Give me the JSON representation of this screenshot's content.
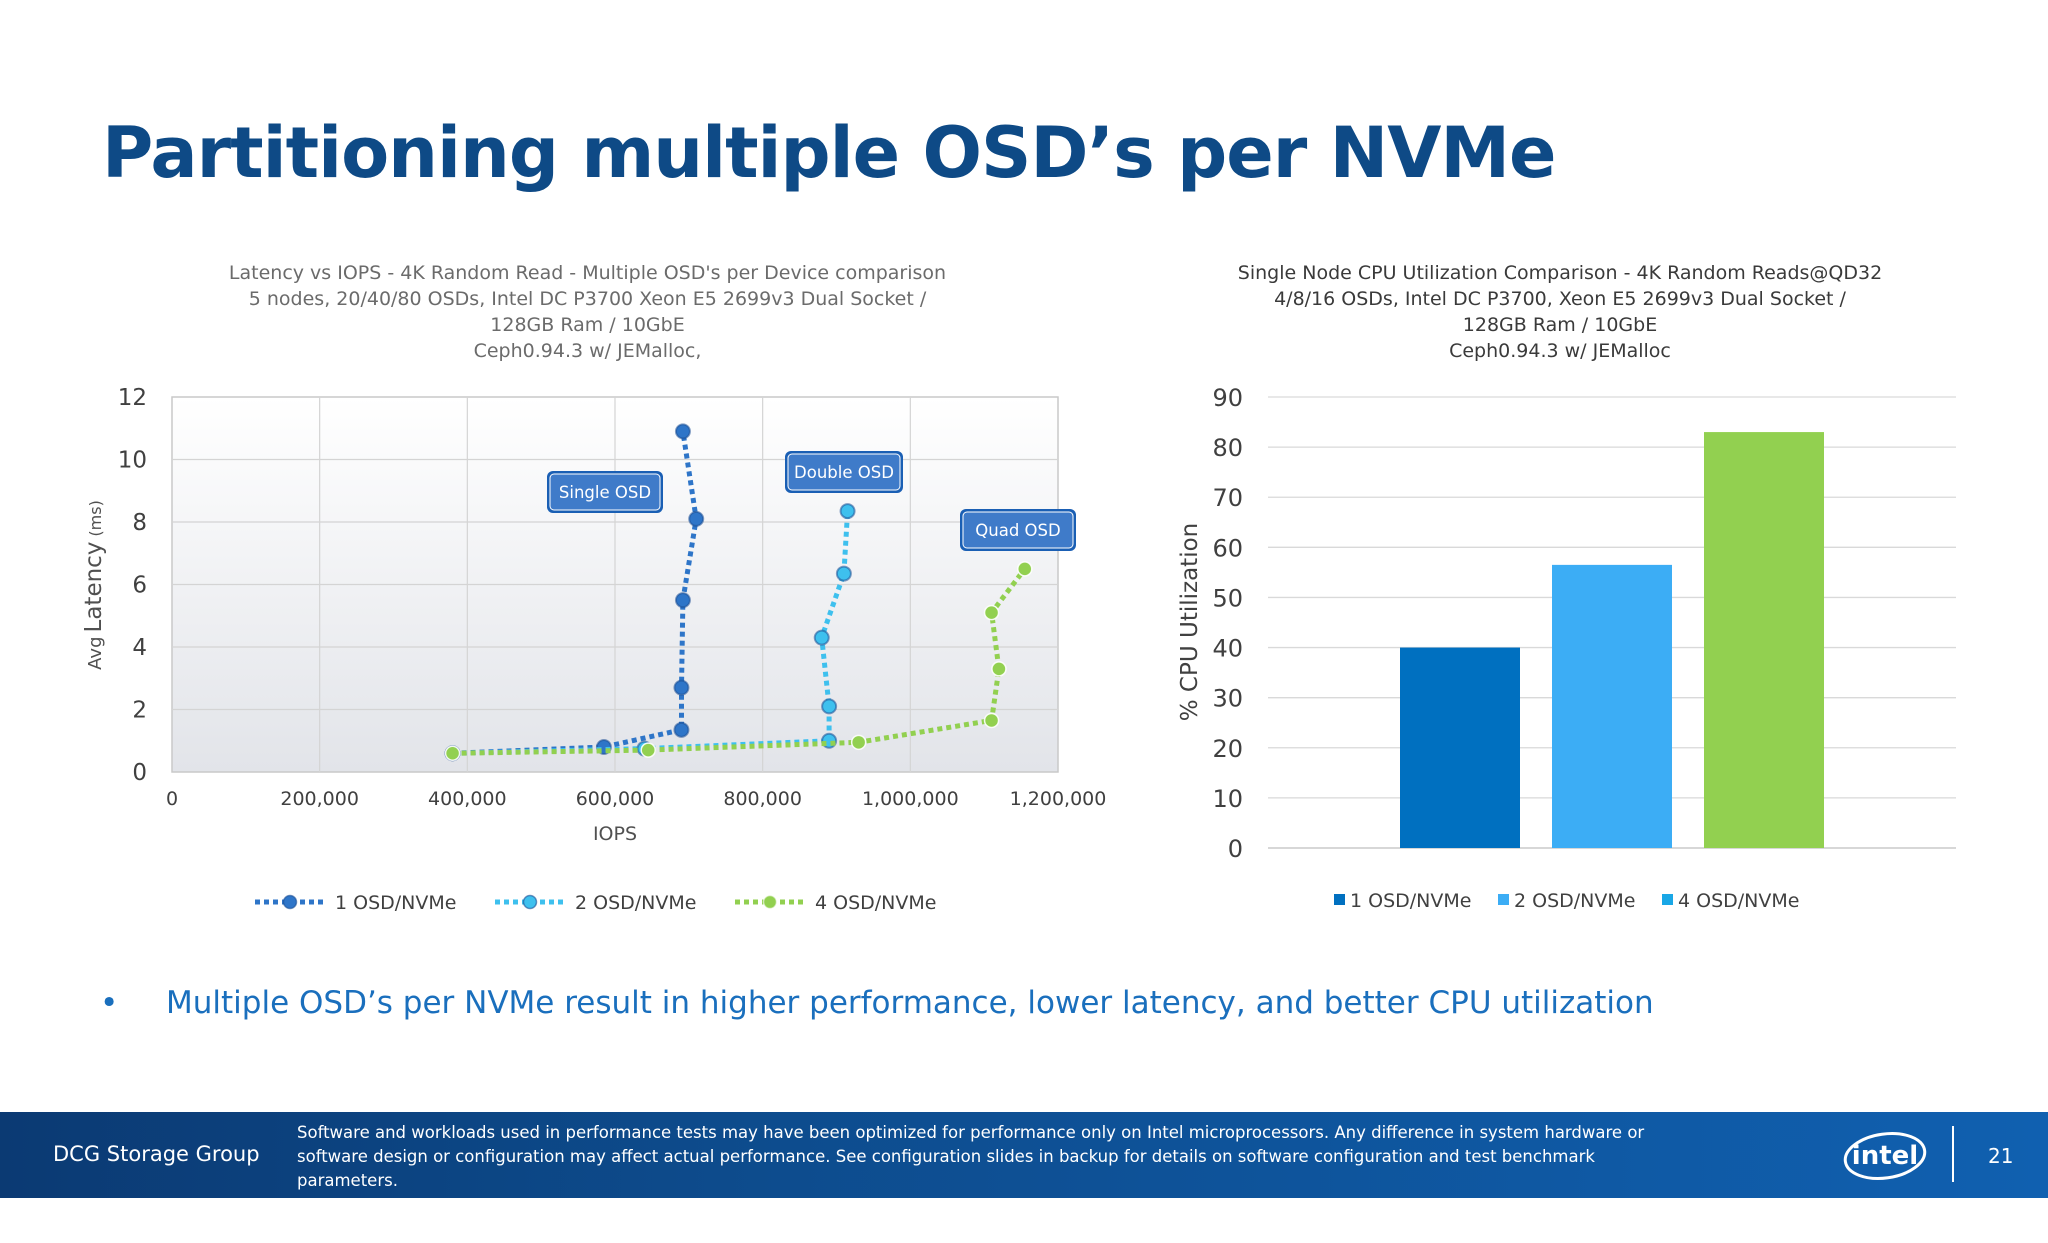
{
  "slide": {
    "title": "Partitioning multiple OSD’s per NVMe",
    "bullet_symbol": "•",
    "bullet": "Multiple OSD’s per NVMe result in higher performance, lower latency, and better CPU utilization"
  },
  "footer": {
    "group": "DCG Storage Group",
    "disclaimer": "Software and workloads used in performance tests may have been optimized for performance only on Intel microprocessors. Any difference in system hardware or software design or configuration may affect actual performance.  See configuration slides in backup for details on software configuration and test benchmark parameters.",
    "logo_text": "intel",
    "page_number": "21"
  },
  "chart_data": [
    {
      "type": "scatter",
      "title_lines": [
        "Latency vs IOPS - 4K Random Read - Multiple OSD's per Device comparison",
        "5 nodes, 20/40/80 OSDs, Intel DC P3700 Xeon E5 2699v3 Dual Socket /",
        "128GB Ram / 10GbE",
        "Ceph0.94.3 w/ JEMalloc,"
      ],
      "xlabel": "IOPS",
      "ylabel_prefix": "Avg",
      "ylabel": "Latency",
      "ylabel_unit": "(ms)",
      "xlim": [
        0,
        1200000
      ],
      "ylim": [
        0,
        12
      ],
      "x_ticks": [
        "0",
        "200,000",
        "400,000",
        "600,000",
        "800,000",
        "1,000,000",
        "1,200,000"
      ],
      "y_ticks": [
        "0",
        "2",
        "4",
        "6",
        "8",
        "10",
        "12"
      ],
      "grid": true,
      "legend_position": "bottom",
      "series": [
        {
          "name": "1 OSD/NVMe",
          "color": "#2e75c8",
          "callout": "Single OSD",
          "points": [
            [
              380000,
              0.6
            ],
            [
              585000,
              0.8
            ],
            [
              690000,
              1.35
            ],
            [
              690000,
              2.7
            ],
            [
              692000,
              5.5
            ],
            [
              710000,
              8.1
            ],
            [
              692000,
              10.9
            ]
          ]
        },
        {
          "name": "2 OSD/NVMe",
          "color": "#3ec0ee",
          "callout": "Double OSD",
          "points": [
            [
              380000,
              0.6
            ],
            [
              640000,
              0.75
            ],
            [
              890000,
              1.0
            ],
            [
              890000,
              2.1
            ],
            [
              880000,
              4.3
            ],
            [
              910000,
              6.35
            ],
            [
              915000,
              8.35
            ]
          ]
        },
        {
          "name": "4 OSD/NVMe",
          "color": "#92d050",
          "callout": "Quad OSD",
          "points": [
            [
              380000,
              0.6
            ],
            [
              645000,
              0.7
            ],
            [
              930000,
              0.95
            ],
            [
              1110000,
              1.65
            ],
            [
              1120000,
              3.3
            ],
            [
              1110000,
              5.1
            ],
            [
              1155000,
              6.5
            ]
          ]
        }
      ]
    },
    {
      "type": "bar",
      "title_lines": [
        "Single Node CPU Utilization Comparison - 4K Random Reads@QD32",
        "4/8/16 OSDs, Intel DC P3700, Xeon E5 2699v3 Dual Socket /",
        "128GB Ram / 10GbE",
        "Ceph0.94.3 w/ JEMalloc"
      ],
      "ylabel": "% CPU Utilization",
      "ylim": [
        0,
        90
      ],
      "y_ticks": [
        "0",
        "10",
        "20",
        "30",
        "40",
        "50",
        "60",
        "70",
        "80",
        "90"
      ],
      "grid": true,
      "legend_position": "bottom",
      "categories": [
        "1 OSD/NVMe",
        "2 OSD/NVMe",
        "4 OSD/NVMe"
      ],
      "values": [
        40,
        56.5,
        83
      ],
      "bar_colors": [
        "#0070c0",
        "#3cadf5",
        "#92d050"
      ],
      "legend": [
        {
          "label": "1 OSD/NVMe",
          "color": "#0070c0"
        },
        {
          "label": "2 OSD/NVMe",
          "color": "#3cadf5"
        },
        {
          "label": "4 OSD/NVMe",
          "color": "#19a7e6"
        }
      ]
    }
  ]
}
